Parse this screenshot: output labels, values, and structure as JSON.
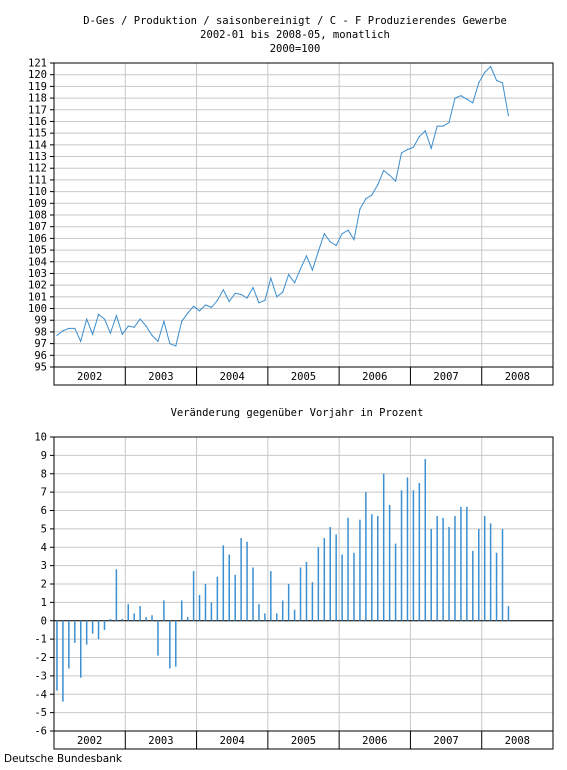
{
  "header": {
    "title": "D-Ges / Produktion / saisonbereinigt / C - F Produzierendes Gewerbe",
    "subtitle": "2002-01 bis 2008-05, monatlich",
    "base": "2000=100"
  },
  "footer": {
    "source": "Deutsche Bundesbank"
  },
  "colors": {
    "series": "#3c8fd0",
    "grid": "#c8c8c8",
    "axis": "#000000"
  },
  "chart_data": [
    {
      "type": "line",
      "title": "D-Ges / Produktion / saisonbereinigt / C - F Produzierendes Gewerbe",
      "period": {
        "start": "2002-01",
        "end": "2008-05",
        "frequency": "monthly"
      },
      "x_tick_labels": [
        "2002",
        "2003",
        "2004",
        "2005",
        "2006",
        "2007",
        "2008"
      ],
      "ylim": [
        95,
        121
      ],
      "y_ticks": [
        95,
        96,
        97,
        98,
        99,
        100,
        101,
        102,
        103,
        104,
        105,
        106,
        107,
        108,
        109,
        110,
        111,
        112,
        113,
        114,
        115,
        116,
        117,
        118,
        119,
        120,
        121
      ],
      "grid": true,
      "series": [
        {
          "values": [
            97.7,
            98.1,
            98.3,
            98.3,
            97.2,
            99.1,
            97.8,
            99.5,
            99.1,
            97.9,
            99.4,
            97.8,
            98.5,
            98.4,
            99.1,
            98.5,
            97.7,
            97.2,
            98.9,
            97.0,
            96.8,
            98.9,
            99.6,
            100.2,
            99.8,
            100.3,
            100.1,
            100.7,
            101.6,
            100.6,
            101.3,
            101.2,
            100.9,
            101.8,
            100.5,
            100.7,
            102.6,
            101.0,
            101.4,
            102.9,
            102.2,
            103.4,
            104.5,
            103.3,
            104.9,
            106.4,
            105.7,
            105.4,
            106.4,
            106.7,
            105.9,
            108.5,
            109.4,
            109.7,
            110.6,
            111.8,
            111.4,
            110.9,
            113.3,
            113.6,
            113.8,
            114.7,
            115.2,
            113.7,
            115.6,
            115.6,
            115.9,
            118.0,
            118.2,
            117.9,
            117.6,
            119.3,
            120.2,
            120.7,
            119.5,
            119.3,
            116.5
          ]
        }
      ]
    },
    {
      "type": "bar",
      "title": "Veränderung gegenüber Vorjahr in Prozent",
      "period": {
        "start": "2002-01",
        "end": "2008-05",
        "frequency": "monthly"
      },
      "x_tick_labels": [
        "2002",
        "2003",
        "2004",
        "2005",
        "2006",
        "2007",
        "2008"
      ],
      "ylim": [
        -6,
        10
      ],
      "y_ticks": [
        -6,
        -5,
        -4,
        -3,
        -2,
        -1,
        0,
        1,
        2,
        3,
        4,
        5,
        6,
        7,
        8,
        9,
        10
      ],
      "grid": true,
      "series": [
        {
          "values": [
            -3.8,
            -4.4,
            -2.6,
            -1.2,
            -3.1,
            -1.3,
            -0.7,
            -1.0,
            -0.5,
            0.1,
            2.8,
            0.1,
            0.9,
            0.4,
            0.8,
            0.2,
            0.3,
            -1.9,
            1.1,
            -2.6,
            -2.5,
            1.1,
            0.2,
            2.7,
            1.4,
            2.0,
            1.0,
            2.4,
            4.1,
            3.6,
            2.5,
            4.5,
            4.3,
            2.9,
            0.9,
            0.4,
            2.7,
            0.4,
            1.1,
            2.0,
            0.6,
            2.9,
            3.2,
            2.1,
            4.0,
            4.5,
            5.1,
            4.7,
            3.6,
            5.6,
            3.7,
            5.5,
            7.0,
            5.8,
            5.7,
            8.0,
            6.3,
            4.2,
            7.1,
            7.8,
            7.1,
            7.5,
            8.8,
            5.0,
            5.7,
            5.6,
            5.1,
            5.7,
            6.2,
            6.2,
            3.8,
            5.0,
            5.7,
            5.3,
            3.7,
            5.0,
            0.8
          ]
        }
      ]
    }
  ]
}
